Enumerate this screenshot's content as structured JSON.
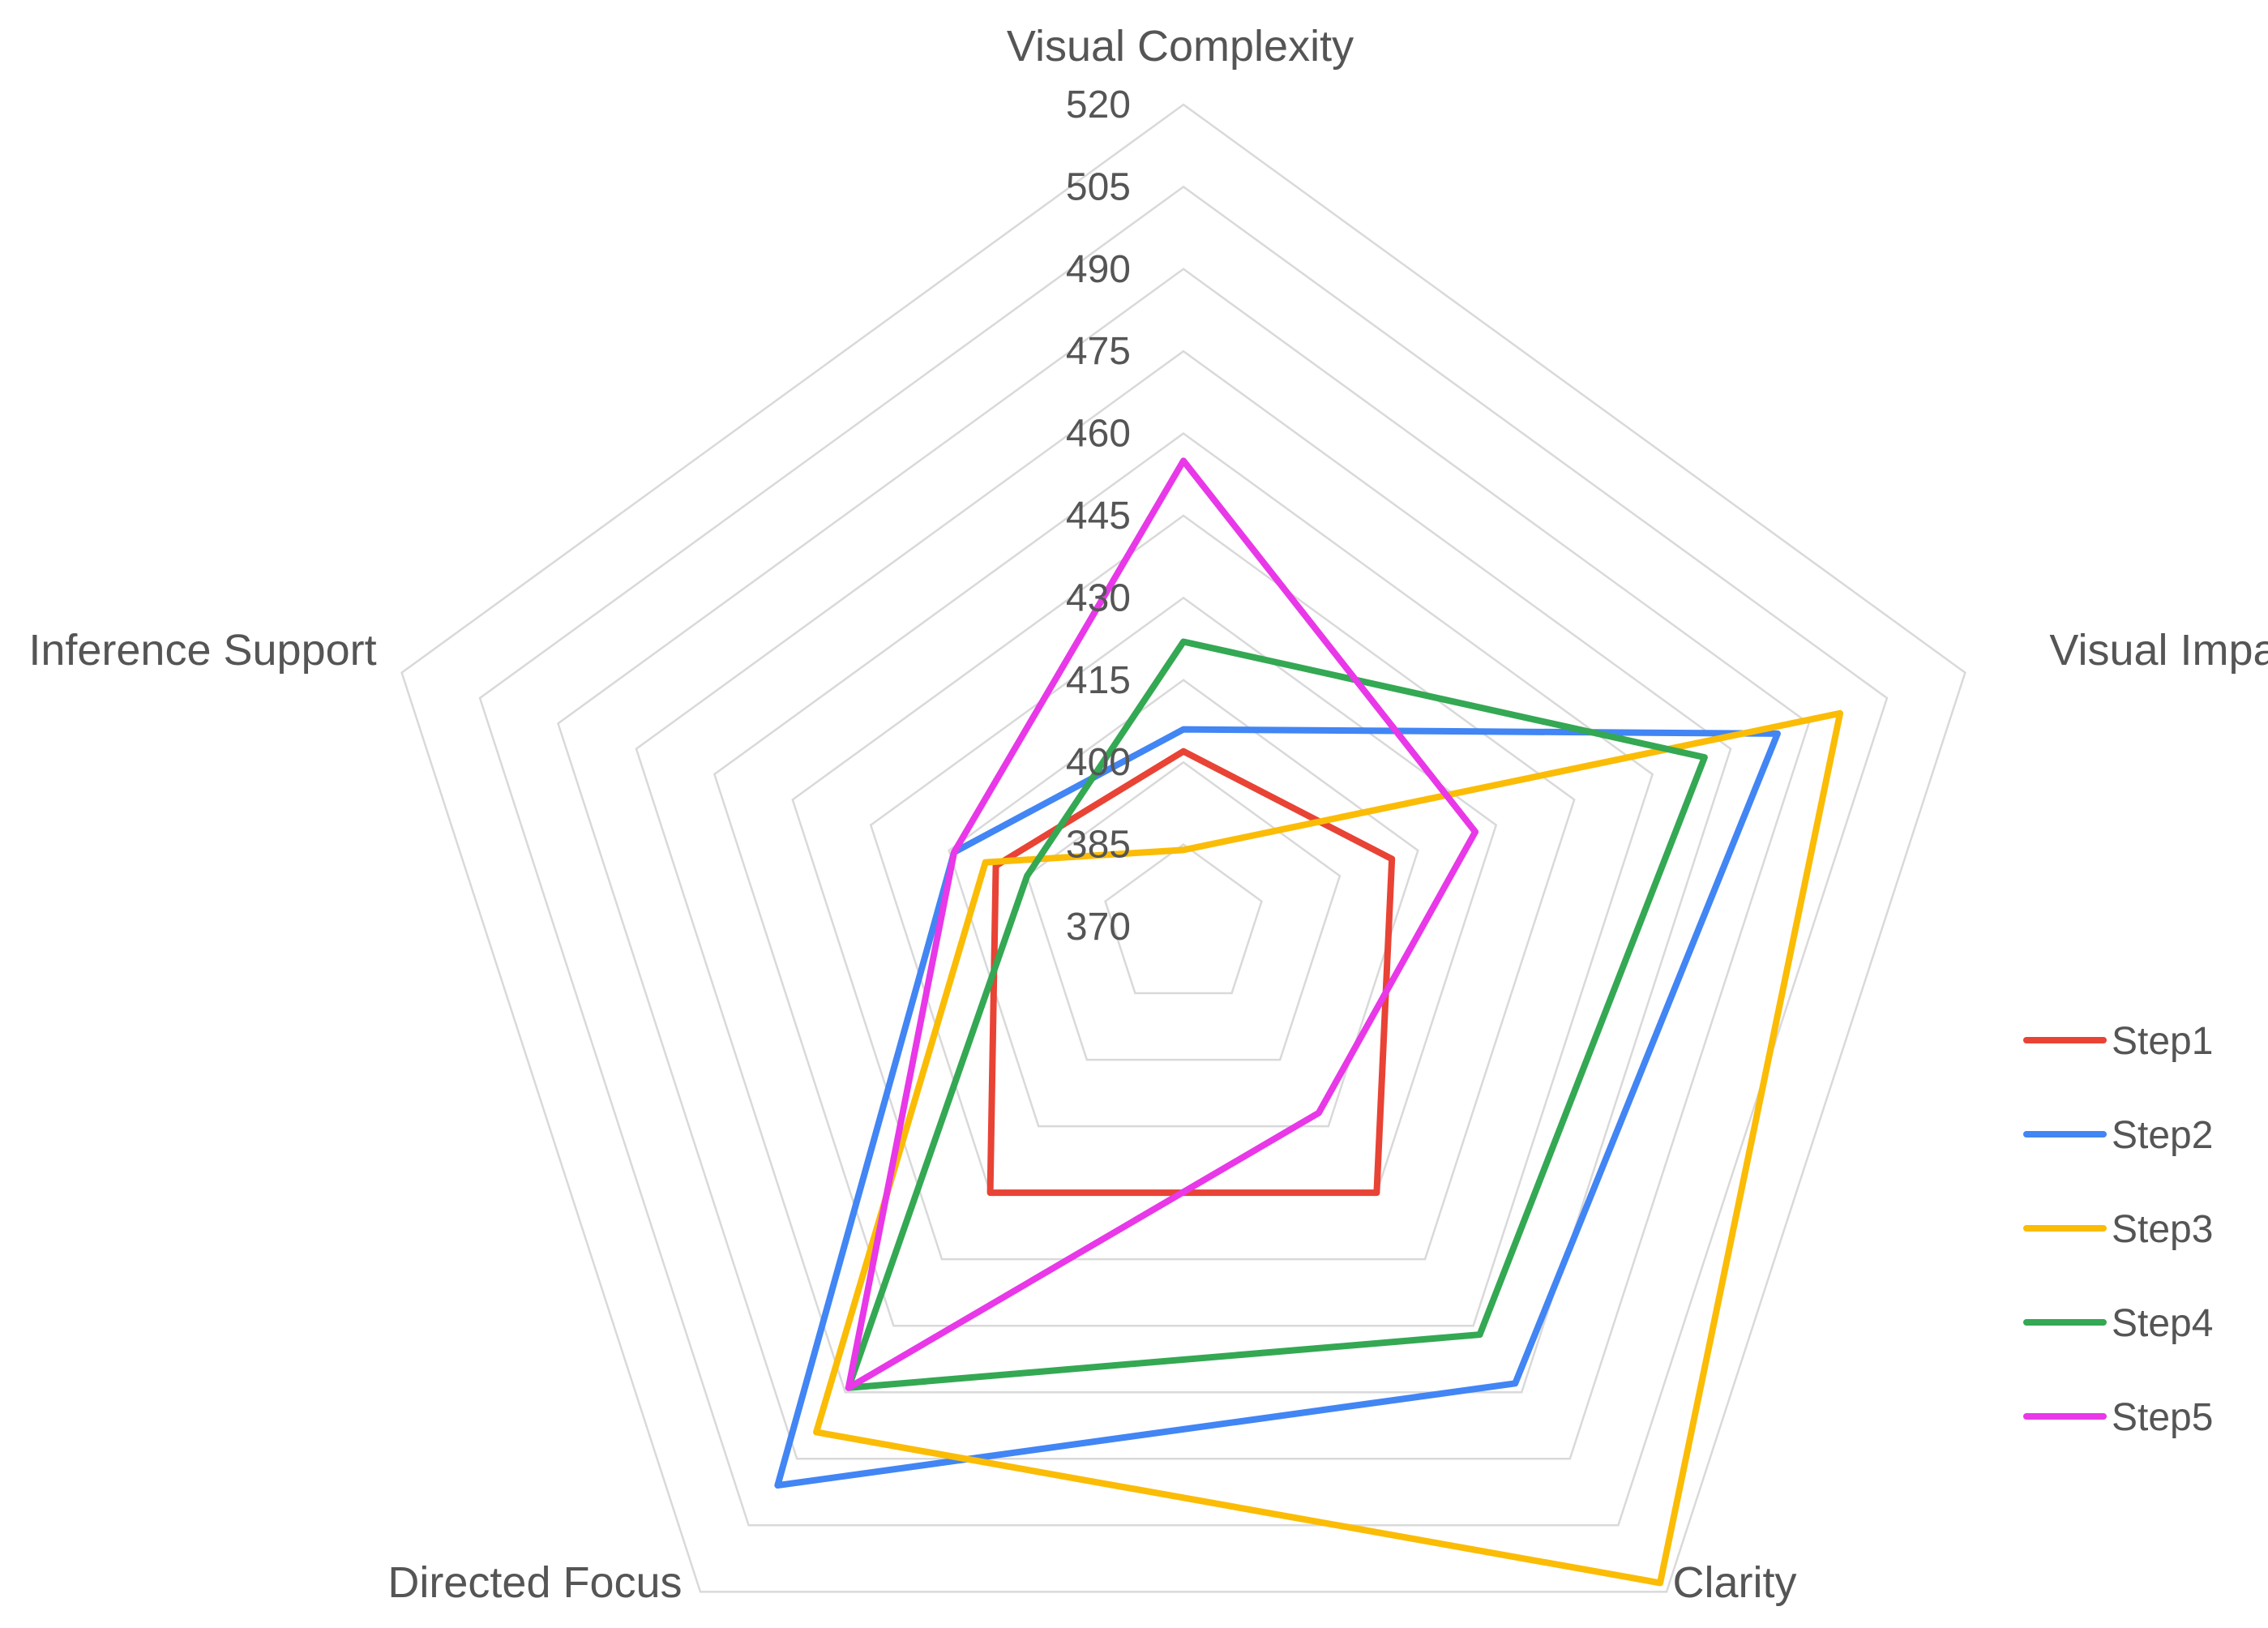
{
  "chart_data": {
    "type": "radar",
    "axes": [
      "Visual Complexity",
      "Visual Impact",
      "Clarity",
      "Directed Focus",
      "Inference Support"
    ],
    "r_ticks": [
      370,
      385,
      400,
      415,
      430,
      445,
      460,
      475,
      490,
      505,
      520
    ],
    "r_range": [
      370,
      520
    ],
    "grid": true,
    "legend_position": "right",
    "series": [
      {
        "name": "Step1",
        "color": "#E84335",
        "values": [
          402,
          410,
          430,
          430,
          406
        ]
      },
      {
        "name": "Step2",
        "color": "#4285F4",
        "values": [
          406,
          484,
          473,
          496,
          414
        ]
      },
      {
        "name": "Step3",
        "color": "#FBBC05",
        "values": [
          384,
          496,
          518,
          484,
          408
        ]
      },
      {
        "name": "Step4",
        "color": "#34A853",
        "values": [
          422,
          470,
          462,
          474,
          400
        ]
      },
      {
        "name": "Step5",
        "color": "#E838E8",
        "values": [
          455,
          426,
          412,
          474,
          414
        ]
      }
    ]
  }
}
